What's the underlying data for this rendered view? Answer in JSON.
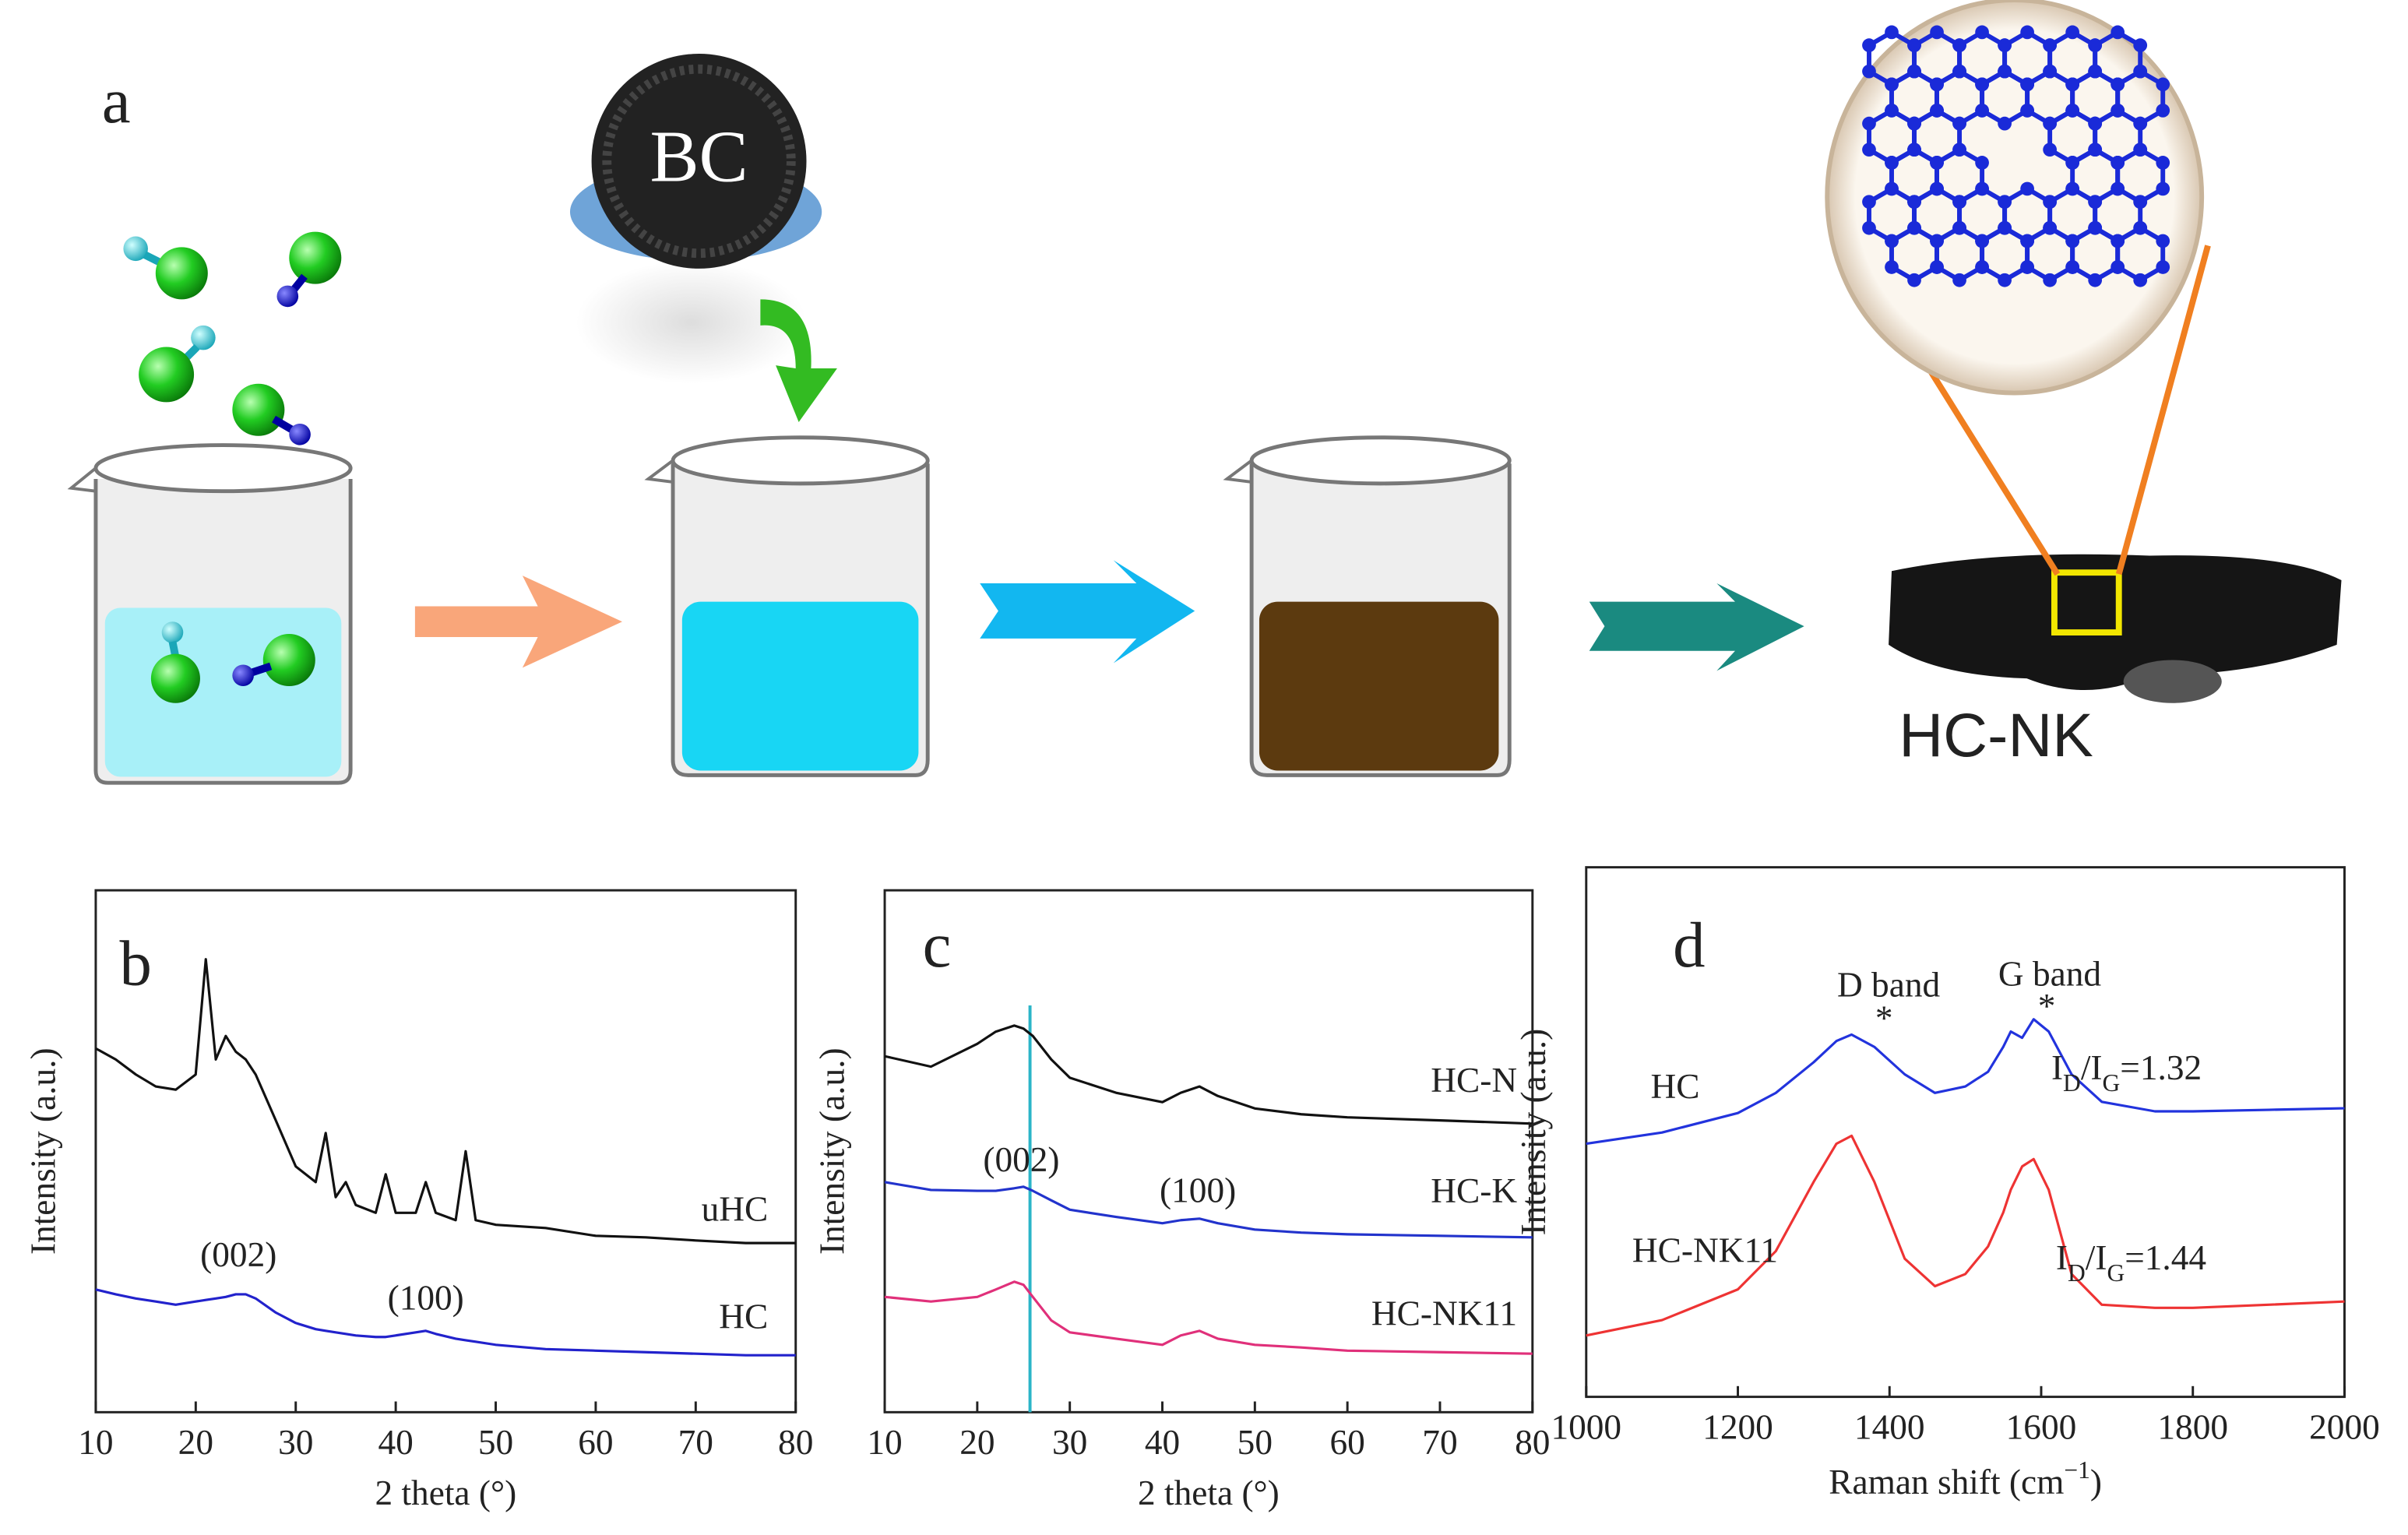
{
  "panel_a": {
    "label": "a",
    "bc_label": "BC",
    "product_label": "HC-NK"
  },
  "chart_data": [
    {
      "type": "line",
      "panel_label": "b",
      "xlabel": "2 theta (°)",
      "ylabel": "Intensity (a.u.)",
      "x": [
        10,
        12,
        14,
        16,
        18,
        20,
        21,
        22,
        23,
        24,
        25,
        26,
        28,
        30,
        32,
        33,
        34,
        35,
        36,
        38,
        39,
        40,
        42,
        43,
        44,
        46,
        47,
        48,
        50,
        55,
        60,
        65,
        70,
        75,
        80
      ],
      "xlim": [
        10,
        80
      ],
      "xticks": [
        10,
        20,
        30,
        40,
        50,
        60,
        70,
        80
      ],
      "ylim": [
        0,
        1
      ],
      "series": [
        {
          "name": "uHC",
          "color": "#111111",
          "values": [
            0.697,
            0.676,
            0.647,
            0.624,
            0.618,
            0.647,
            0.868,
            0.676,
            0.721,
            0.691,
            0.676,
            0.647,
            0.559,
            0.471,
            0.441,
            0.535,
            0.412,
            0.441,
            0.397,
            0.382,
            0.456,
            0.382,
            0.382,
            0.441,
            0.382,
            0.368,
            0.5,
            0.368,
            0.359,
            0.353,
            0.338,
            0.335,
            0.329,
            0.324,
            0.324
          ]
        },
        {
          "name": "HC",
          "color": "#2222cc",
          "values": [
            0.235,
            0.226,
            0.218,
            0.212,
            0.206,
            0.212,
            0.215,
            0.218,
            0.221,
            0.226,
            0.226,
            0.218,
            0.191,
            0.171,
            0.159,
            0.156,
            0.153,
            0.15,
            0.147,
            0.144,
            0.144,
            0.147,
            0.153,
            0.156,
            0.15,
            0.141,
            0.138,
            0.135,
            0.129,
            0.121,
            0.118,
            0.115,
            0.112,
            0.109,
            0.109
          ]
        }
      ],
      "annotations": [
        {
          "text_parts": [
            "(002)"
          ]
        },
        {
          "text_parts": [
            "(100)"
          ]
        }
      ]
    },
    {
      "type": "line",
      "panel_label": "c",
      "xlabel": "2 theta (°)",
      "ylabel": "Intensity (a.u.)",
      "x": [
        10,
        15,
        20,
        22,
        24,
        25,
        26,
        28,
        30,
        35,
        40,
        42,
        44,
        46,
        50,
        55,
        60,
        70,
        80
      ],
      "xlim": [
        10,
        80
      ],
      "xticks": [
        10,
        20,
        30,
        40,
        50,
        60,
        70,
        80
      ],
      "ylim": [
        0,
        1
      ],
      "vline": {
        "x": 25.7,
        "color": "#2bb5c8"
      },
      "series": [
        {
          "name": "HC-N",
          "color": "#111111",
          "values": [
            0.682,
            0.662,
            0.706,
            0.729,
            0.741,
            0.735,
            0.721,
            0.676,
            0.641,
            0.612,
            0.594,
            0.612,
            0.624,
            0.606,
            0.582,
            0.571,
            0.565,
            0.559,
            0.553
          ]
        },
        {
          "name": "HC-K",
          "color": "#2233cc",
          "values": [
            0.441,
            0.426,
            0.424,
            0.424,
            0.429,
            0.432,
            0.424,
            0.406,
            0.388,
            0.374,
            0.362,
            0.368,
            0.371,
            0.362,
            0.35,
            0.344,
            0.341,
            0.338,
            0.335
          ]
        },
        {
          "name": "HC-NK11",
          "color": "#e0307a",
          "values": [
            0.221,
            0.212,
            0.221,
            0.235,
            0.25,
            0.244,
            0.221,
            0.176,
            0.153,
            0.141,
            0.129,
            0.147,
            0.156,
            0.141,
            0.129,
            0.124,
            0.118,
            0.115,
            0.112
          ]
        }
      ],
      "annotations": [
        {
          "text_parts": [
            "(002)"
          ]
        },
        {
          "text_parts": [
            "(100)"
          ]
        }
      ]
    },
    {
      "type": "line",
      "panel_label": "d",
      "xlabel_parts": [
        "Raman shift (cm",
        "−1",
        ")"
      ],
      "ylabel": "Intensity (a.u.)",
      "x": [
        1000,
        1100,
        1200,
        1250,
        1300,
        1330,
        1350,
        1380,
        1420,
        1460,
        1500,
        1530,
        1550,
        1560,
        1575,
        1590,
        1610,
        1640,
        1680,
        1750,
        1800,
        1900,
        2000
      ],
      "xlim": [
        1000,
        2000
      ],
      "xticks": [
        1000,
        1200,
        1400,
        1600,
        1800,
        2000
      ],
      "ylim": [
        0,
        1
      ],
      "series": [
        {
          "name": "HC",
          "color": "#2233dd",
          "values": [
            0.478,
            0.499,
            0.536,
            0.574,
            0.632,
            0.672,
            0.684,
            0.661,
            0.609,
            0.574,
            0.586,
            0.614,
            0.661,
            0.69,
            0.678,
            0.713,
            0.69,
            0.609,
            0.557,
            0.539,
            0.539,
            0.542,
            0.545
          ]
        },
        {
          "name": "HC-NK11",
          "color": "#ee3333",
          "values": [
            0.116,
            0.145,
            0.203,
            0.275,
            0.406,
            0.478,
            0.493,
            0.406,
            0.261,
            0.209,
            0.232,
            0.284,
            0.348,
            0.391,
            0.435,
            0.449,
            0.391,
            0.232,
            0.174,
            0.168,
            0.168,
            0.174,
            0.18
          ]
        }
      ],
      "annotations": [
        {
          "text_parts": [
            "D band"
          ]
        },
        {
          "text_parts": [
            "G band"
          ]
        },
        {
          "text_parts": [
            "*"
          ]
        },
        {
          "text_parts": [
            "*"
          ]
        },
        {
          "text_parts": [
            "I",
            "D",
            "/I",
            "G",
            "=1.32"
          ]
        },
        {
          "text_parts": [
            "I",
            "D",
            "/I",
            "G",
            "=1.44"
          ]
        }
      ]
    }
  ]
}
